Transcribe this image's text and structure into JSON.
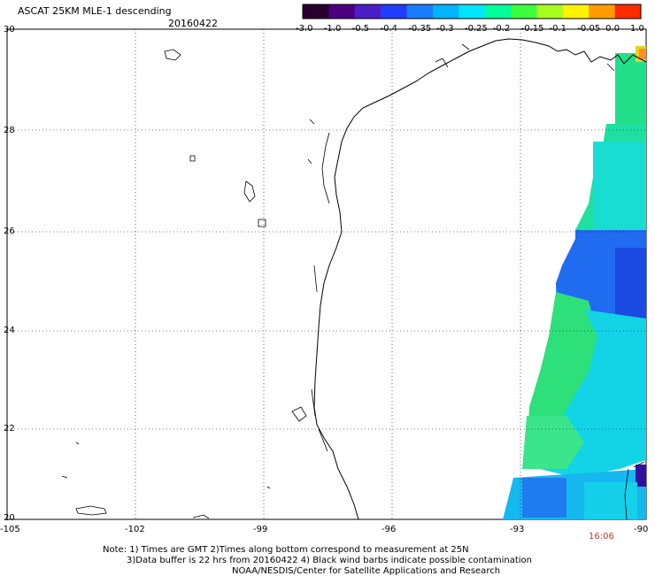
{
  "header": {
    "title": "ASCAT 25KM MLE-1 descending",
    "date": "20160422"
  },
  "colorbar": {
    "labels": [
      "-3.0",
      "-1.0",
      "-0.5",
      "-0.4",
      "-0.35",
      "-0.3",
      "-0.25",
      "-0.2",
      "-0.15",
      "-0.1",
      "-0.05",
      "0.0",
      "1.0"
    ],
    "colors": [
      "#2a0030",
      "#4b0082",
      "#4a1fc8",
      "#1f3cff",
      "#1a7cff",
      "#00b4ff",
      "#00e5ff",
      "#00ff9c",
      "#3cff3c",
      "#a6ff1f",
      "#fff200",
      "#ff9c00",
      "#ff2a00"
    ]
  },
  "axes": {
    "y_ticks": [
      "30",
      "28",
      "26",
      "24",
      "22",
      "20"
    ],
    "x_ticks": [
      "-105",
      "-102",
      "-99",
      "-96",
      "-93",
      "-90"
    ]
  },
  "footer": {
    "time": "16:06",
    "note_line1": "Note: 1) Times are GMT 2)Times along bottom correspond to measurement at 25N",
    "note_line2": "3)Data buffer is 22 hrs from 20160422 4) Black wind barbs indicate possible contamination",
    "note_line3": "NOAA/NESDIS/Center for Satellite Applications and Research"
  }
}
